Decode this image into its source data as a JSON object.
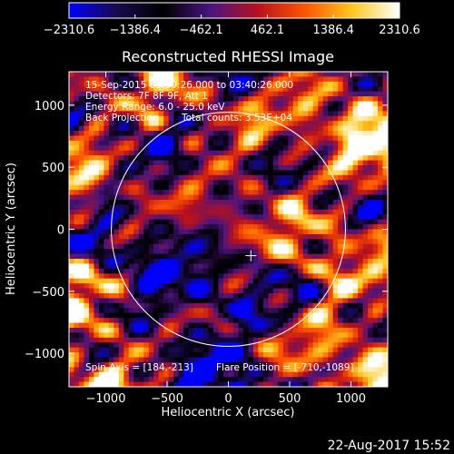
{
  "chart_data": {
    "type": "heatmap",
    "title": "Reconstructed RHESSI Image",
    "xlabel": "Heliocentric X (arcsec)",
    "ylabel": "Heliocentric Y (arcsec)",
    "xlim": [
      -1300,
      1300
    ],
    "ylim": [
      -1270,
      1270
    ],
    "x_ticks": [
      -1000,
      -500,
      0,
      500,
      1000
    ],
    "x_tick_labels": [
      "−1000",
      "−500",
      "0",
      "500",
      "1000"
    ],
    "y_ticks": [
      -1000,
      -500,
      0,
      500,
      1000
    ],
    "y_tick_labels": [
      "−1000",
      "−500",
      "0",
      "500",
      "1000"
    ],
    "colorbar": {
      "min": -2310.6,
      "max": 2310.6,
      "ticks": [
        -2310.6,
        -1386.4,
        -462.1,
        462.1,
        1386.4,
        2310.6
      ],
      "tick_labels": [
        "−2310.6",
        "−1386.4",
        "−462.1",
        "462.1",
        "1386.4",
        "2310.6"
      ],
      "stops": [
        "#0000ff",
        "#1a0a50",
        "#000000",
        "#4a1580",
        "#b8101e",
        "#ff5500",
        "#ffc81e",
        "#ffffff"
      ]
    },
    "solar_disk": {
      "center": [
        0,
        0
      ],
      "radius": 955,
      "color": "#ffffff"
    },
    "crosshair": {
      "x": 184,
      "y": -213
    },
    "annotations": {
      "time_range": "15-Sep-2015 03:30:26.000 to 03:40:26.000",
      "detectors": "Detectors: 7F 8F 9F, Att 1",
      "energy_range": "Energy Range: 6.0 - 25.0 keV",
      "method": "Back Projection",
      "total_counts": "Total counts: 3.53E+04",
      "spin_axis": "Spin Axis = [184,-213]",
      "flare_position": "Flare Position = [-710,-1089]"
    },
    "grid": false
  },
  "footer": {
    "timestamp": "22-Aug-2017 15:52"
  }
}
